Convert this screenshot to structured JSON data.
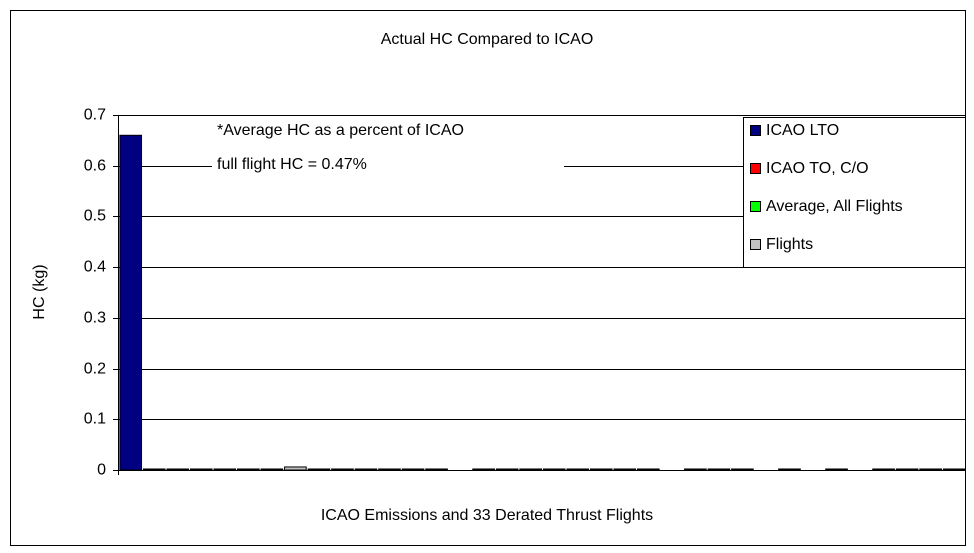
{
  "chart_data": {
    "type": "bar",
    "title": "Actual HC Compared to ICAO",
    "x_label": "ICAO Emissions and 33 Derated Thrust Flights",
    "y_label": "HC (kg)",
    "annotations": [
      "*Average HC as a percent of ICAO",
      "full flight HC = 0.47%"
    ],
    "categories": [
      null,
      null,
      null,
      null,
      null,
      null,
      null,
      null,
      null,
      null,
      null,
      null,
      null,
      null,
      null,
      null,
      null,
      null,
      null,
      null,
      null,
      null,
      null,
      null,
      null,
      null,
      null,
      null,
      null,
      null,
      null,
      null,
      null,
      null,
      null,
      null
    ],
    "series": [
      {
        "name": "ICAO LTO",
        "color": "#000080",
        "values": [
          0.66,
          null,
          null,
          null,
          null,
          null,
          null,
          null,
          null,
          null,
          null,
          null,
          null,
          null,
          null,
          null,
          null,
          null,
          null,
          null,
          null,
          null,
          null,
          null,
          null,
          null,
          null,
          null,
          null,
          null,
          null,
          null,
          null,
          null,
          null,
          null
        ]
      },
      {
        "name": "ICAO TO, C/O",
        "color": "#ff0000",
        "values": [
          null,
          0.002,
          null,
          null,
          null,
          null,
          null,
          null,
          null,
          null,
          null,
          null,
          null,
          null,
          null,
          null,
          null,
          null,
          null,
          null,
          null,
          null,
          null,
          null,
          null,
          null,
          null,
          null,
          null,
          null,
          null,
          null,
          null,
          null,
          null,
          null
        ]
      },
      {
        "name": "Average, All Flights",
        "color": "#00ff00",
        "values": [
          null,
          null,
          0.002,
          null,
          null,
          null,
          null,
          null,
          null,
          null,
          null,
          null,
          null,
          null,
          null,
          null,
          null,
          null,
          null,
          null,
          null,
          null,
          null,
          null,
          null,
          null,
          null,
          null,
          null,
          null,
          null,
          null,
          null,
          null,
          null,
          null
        ]
      },
      {
        "name": "Flights",
        "color": "#c0c0c0",
        "values": [
          null,
          null,
          null,
          0.002,
          0.002,
          0.002,
          0.002,
          0.006,
          0.002,
          0.002,
          0.002,
          0.002,
          0.002,
          0.002,
          0,
          0.002,
          0.002,
          0.002,
          0.002,
          0.002,
          0.002,
          0.002,
          0.002,
          0,
          0.002,
          0.002,
          0.002,
          0,
          0.002,
          0,
          0.002,
          0,
          0.002,
          0.002,
          0.002,
          0.002
        ]
      }
    ],
    "ylim": [
      0,
      0.7
    ],
    "yticks": [
      0,
      0.1,
      0.2,
      0.3,
      0.4,
      0.5,
      0.6,
      0.7
    ],
    "grid": true,
    "legend": "top-right"
  }
}
